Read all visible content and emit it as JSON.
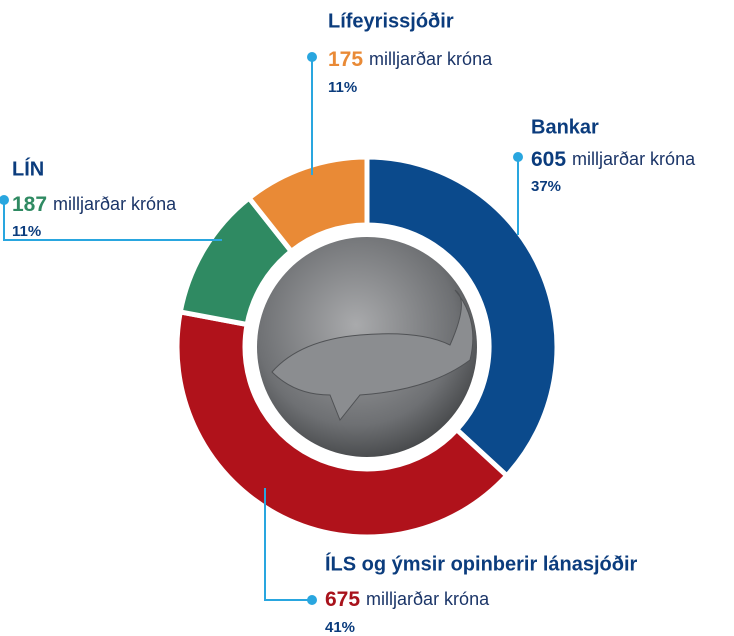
{
  "chart_data": {
    "type": "donut",
    "categories": [
      "Bankar",
      "ÍLS og ýmsir opinberir lánasjóðir",
      "LÍN",
      "Lífeyrissjóðir"
    ],
    "values": [
      605,
      675,
      187,
      175
    ],
    "percent_labels": [
      "37%",
      "41%",
      "11%",
      "11%"
    ],
    "unit": "milljarðar króna",
    "colors": [
      "#0b4a8c",
      "#b0121b",
      "#2f8a62",
      "#e98a36"
    ]
  }
}
